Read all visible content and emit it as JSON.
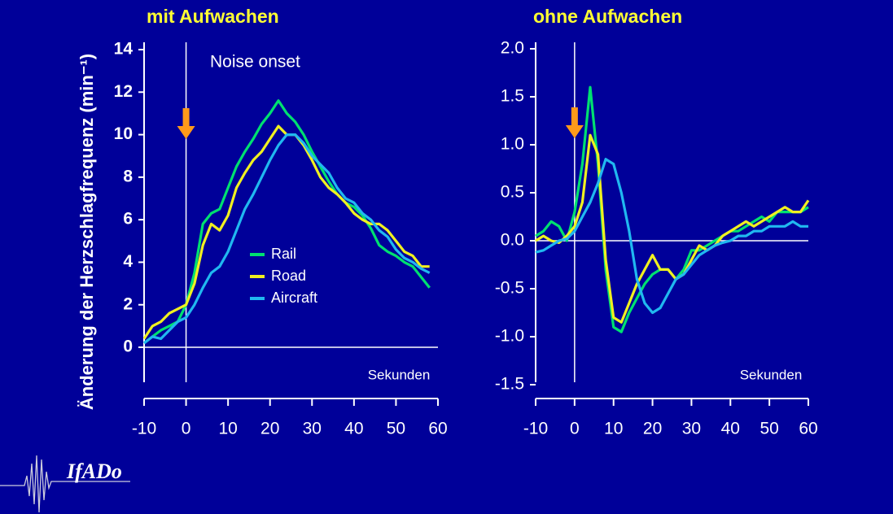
{
  "logo": "IfADo",
  "chart_data": [
    {
      "type": "line",
      "title": "mit Aufwachen",
      "ylabel": "Änderung der Herzschlagfrequenz (min⁻¹)",
      "xlabel": "Sekunden",
      "annotation": "Noise onset",
      "legend": "center",
      "x": [
        -10,
        -8,
        -6,
        -4,
        -2,
        0,
        2,
        4,
        6,
        8,
        10,
        12,
        14,
        16,
        18,
        20,
        22,
        24,
        26,
        28,
        30,
        32,
        34,
        36,
        38,
        40,
        42,
        44,
        46,
        48,
        50,
        52,
        54,
        56,
        58
      ],
      "series": [
        {
          "name": "Rail",
          "color": "#00e070",
          "values": [
            0.2,
            0.5,
            0.8,
            1.0,
            1.2,
            2.0,
            3.5,
            5.8,
            6.3,
            6.5,
            7.5,
            8.5,
            9.2,
            9.8,
            10.5,
            11.0,
            11.6,
            11.0,
            10.6,
            10.0,
            9.2,
            8.5,
            7.8,
            7.2,
            6.8,
            6.6,
            6.2,
            5.6,
            4.8,
            4.5,
            4.3,
            4.0,
            3.8,
            3.3,
            2.8
          ]
        },
        {
          "name": "Road",
          "color": "#f0f020",
          "values": [
            0.4,
            1.0,
            1.2,
            1.6,
            1.8,
            2.0,
            3.0,
            4.8,
            5.8,
            5.5,
            6.2,
            7.5,
            8.2,
            8.8,
            9.2,
            9.8,
            10.4,
            10.0,
            10.0,
            9.5,
            8.8,
            8.0,
            7.5,
            7.2,
            6.8,
            6.3,
            6.0,
            5.8,
            5.8,
            5.5,
            5.0,
            4.5,
            4.3,
            3.8,
            3.8
          ]
        },
        {
          "name": "Aircraft",
          "color": "#20b8f0",
          "values": [
            0.2,
            0.5,
            0.4,
            0.8,
            1.2,
            1.4,
            2.0,
            2.8,
            3.5,
            3.8,
            4.5,
            5.5,
            6.5,
            7.2,
            8.0,
            8.8,
            9.5,
            10.0,
            10.0,
            9.6,
            9.0,
            8.6,
            8.2,
            7.5,
            7.0,
            6.8,
            6.3,
            6.0,
            5.5,
            5.2,
            4.6,
            4.2,
            4.0,
            3.7,
            3.5
          ]
        }
      ],
      "xlim": [
        -10,
        60
      ],
      "xticks": [
        -10,
        0,
        10,
        20,
        30,
        40,
        50,
        60
      ],
      "ylim": [
        0,
        14
      ],
      "yticks": [
        0,
        2,
        4,
        6,
        8,
        10,
        12,
        14
      ]
    },
    {
      "type": "line",
      "title": "ohne Aufwachen",
      "xlabel": "Sekunden",
      "x": [
        -10,
        -8,
        -6,
        -4,
        -2,
        0,
        2,
        4,
        6,
        8,
        10,
        12,
        14,
        16,
        18,
        20,
        22,
        24,
        26,
        28,
        30,
        32,
        34,
        36,
        38,
        40,
        42,
        44,
        46,
        48,
        50,
        52,
        54,
        56,
        58,
        60
      ],
      "series": [
        {
          "color": "#00e070",
          "values": [
            0.05,
            0.1,
            0.2,
            0.15,
            0.0,
            0.3,
            0.8,
            1.6,
            0.8,
            -0.3,
            -0.9,
            -0.95,
            -0.75,
            -0.6,
            -0.45,
            -0.35,
            -0.3,
            -0.3,
            -0.4,
            -0.3,
            -0.1,
            -0.1,
            -0.05,
            0.0,
            0.05,
            0.1,
            0.1,
            0.15,
            0.2,
            0.25,
            0.2,
            0.3,
            0.3,
            0.3,
            0.3,
            0.35
          ]
        },
        {
          "color": "#f0f020",
          "values": [
            0.0,
            0.05,
            0.0,
            -0.02,
            0.05,
            0.15,
            0.4,
            1.1,
            0.9,
            -0.2,
            -0.8,
            -0.85,
            -0.65,
            -0.45,
            -0.3,
            -0.15,
            -0.3,
            -0.3,
            -0.4,
            -0.35,
            -0.2,
            -0.05,
            -0.1,
            -0.05,
            0.05,
            0.1,
            0.15,
            0.2,
            0.15,
            0.2,
            0.25,
            0.3,
            0.35,
            0.3,
            0.3,
            0.42
          ]
        },
        {
          "color": "#20b8f0",
          "values": [
            -0.12,
            -0.1,
            -0.05,
            0.0,
            0.02,
            0.1,
            0.25,
            0.4,
            0.6,
            0.85,
            0.8,
            0.5,
            0.1,
            -0.4,
            -0.65,
            -0.75,
            -0.7,
            -0.55,
            -0.4,
            -0.35,
            -0.25,
            -0.15,
            -0.1,
            -0.05,
            -0.02,
            0.0,
            0.05,
            0.05,
            0.1,
            0.1,
            0.15,
            0.15,
            0.15,
            0.2,
            0.15,
            0.15
          ]
        }
      ],
      "xlim": [
        -10,
        60
      ],
      "xticks": [
        -10,
        0,
        10,
        20,
        30,
        40,
        50,
        60
      ],
      "ylim": [
        -1.5,
        2.0
      ],
      "yticks": [
        {
          "value": -1.5,
          "label": "-1.5"
        },
        {
          "value": -1,
          "label": "-1.0"
        },
        -0.5,
        {
          "value": 0,
          "label": "0.0"
        },
        0.5,
        {
          "value": 1,
          "label": "1.0"
        },
        1.5,
        {
          "value": 2,
          "label": "2.0"
        }
      ]
    }
  ]
}
